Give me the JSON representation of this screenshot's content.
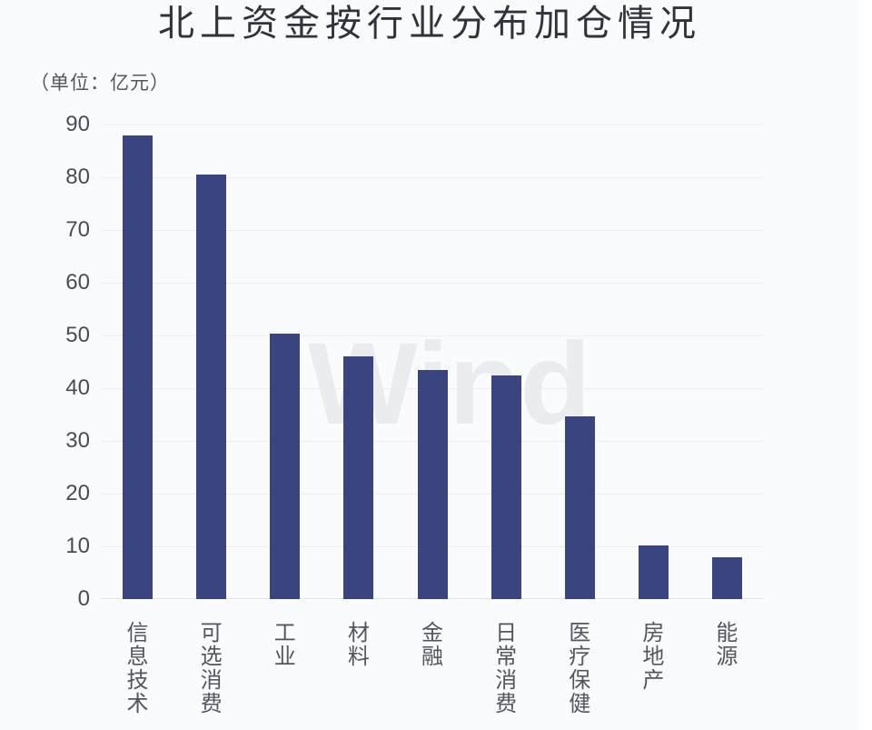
{
  "chart_data": {
    "type": "bar",
    "title": "北上资金按行业分布加仓情况",
    "unit_label": "（单位：亿元）",
    "categories": [
      "信息技术",
      "可选消费",
      "工业",
      "材料",
      "金融",
      "日常消费",
      "医疗保健",
      "房地产",
      "能源"
    ],
    "values": [
      88,
      80.5,
      50.3,
      46.1,
      43.5,
      42.4,
      34.6,
      10.1,
      8
    ],
    "xlabel": "",
    "ylabel": "",
    "ylim": [
      0,
      90
    ],
    "y_ticks": [
      0,
      10,
      20,
      30,
      40,
      50,
      60,
      70,
      80,
      90
    ],
    "grid": true,
    "legend": "none",
    "watermark": "Wind",
    "colors": {
      "bar": "#3a4580",
      "background": "#fafbfd",
      "gridline": "#ececf1",
      "axis_line": "#e3e4e9",
      "title_text": "#32323a",
      "tick_text": "#4b4b54",
      "category_text": "#55555e",
      "unit_text": "#55555e",
      "watermark_text": "#ebecf0"
    }
  }
}
